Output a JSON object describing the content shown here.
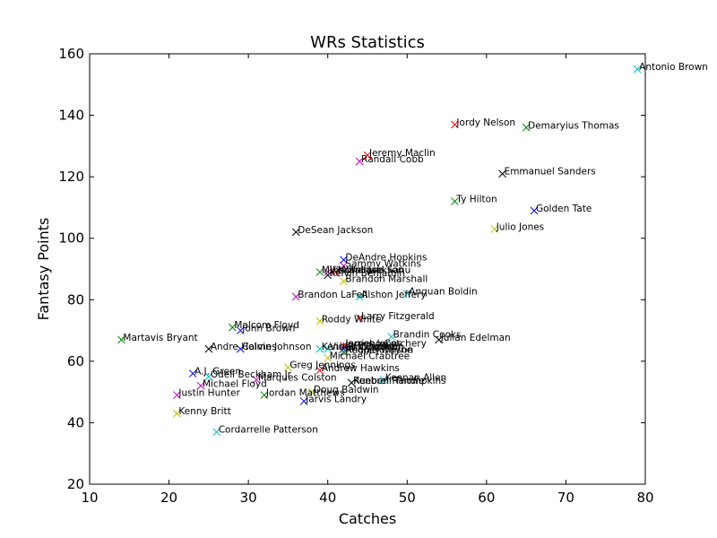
{
  "chart_data": {
    "type": "scatter",
    "title": "WRs Statistics",
    "xlabel": "Catches",
    "ylabel": "Fantasy Points",
    "xlim": [
      10,
      80
    ],
    "ylim": [
      20,
      160
    ],
    "xticks": [
      10,
      20,
      30,
      40,
      50,
      60,
      70,
      80
    ],
    "yticks": [
      20,
      40,
      60,
      80,
      100,
      120,
      140,
      160
    ],
    "grid": false,
    "marker": "x",
    "palette": [
      "#00bfbf",
      "#ff0000",
      "#008000",
      "#000000",
      "#0000ff",
      "#bfbf00",
      "#bf00bf"
    ],
    "points": [
      {
        "label": "Antonio Brown",
        "x": 79,
        "y": 155,
        "color": 0
      },
      {
        "label": "Jordy Nelson",
        "x": 56,
        "y": 137,
        "color": 1
      },
      {
        "label": "Demaryius Thomas",
        "x": 65,
        "y": 136,
        "color": 2
      },
      {
        "label": "Jeremy Maclin",
        "x": 45,
        "y": 127,
        "color": 1
      },
      {
        "label": "Randall Cobb",
        "x": 44,
        "y": 125,
        "color": 6
      },
      {
        "label": "Emmanuel Sanders",
        "x": 62,
        "y": 121,
        "color": 3
      },
      {
        "label": "Ty Hilton",
        "x": 56,
        "y": 112,
        "color": 2
      },
      {
        "label": "Golden Tate",
        "x": 66,
        "y": 109,
        "color": 4
      },
      {
        "label": "Julio Jones",
        "x": 61,
        "y": 103,
        "color": 5
      },
      {
        "label": "DeSean Jackson",
        "x": 36,
        "y": 102,
        "color": 3
      },
      {
        "label": "DeAndre Hopkins",
        "x": 42,
        "y": 93,
        "color": 4
      },
      {
        "label": "Sammy Watkins",
        "x": 42,
        "y": 91,
        "color": 6
      },
      {
        "label": "Mohamed Sanu",
        "x": 41,
        "y": 89,
        "color": 1
      },
      {
        "label": "Mike Wallace",
        "x": 39,
        "y": 89,
        "color": 2
      },
      {
        "label": "Kelvin Benjamin",
        "x": 40,
        "y": 88,
        "color": 3
      },
      {
        "label": "Vincent Jackson",
        "x": 40,
        "y": 89,
        "color": 6
      },
      {
        "label": "Brandon Marshall",
        "x": 42,
        "y": 86,
        "color": 5
      },
      {
        "label": "Brandon LaFell",
        "x": 36,
        "y": 81,
        "color": 6
      },
      {
        "label": "Alshon Jeffery",
        "x": 44,
        "y": 81,
        "color": 0
      },
      {
        "label": "Anquan Boldin",
        "x": 50,
        "y": 82,
        "color": 0
      },
      {
        "label": "Larry Fitzgerald",
        "x": 44,
        "y": 74,
        "color": 1
      },
      {
        "label": "Roddy White",
        "x": 39,
        "y": 73,
        "color": 5
      },
      {
        "label": "Malcom Floyd",
        "x": 28,
        "y": 71,
        "color": 2
      },
      {
        "label": "John Brown",
        "x": 29,
        "y": 70,
        "color": 4
      },
      {
        "label": "Brandin Cooks",
        "x": 48,
        "y": 68,
        "color": 0
      },
      {
        "label": "Julian Edelman",
        "x": 54,
        "y": 67,
        "color": 3
      },
      {
        "label": "Martavis Bryant",
        "x": 14,
        "y": 67,
        "color": 2
      },
      {
        "label": "Andre Holmes",
        "x": 25,
        "y": 64,
        "color": 3
      },
      {
        "label": "Calvin Johnson",
        "x": 29,
        "y": 64,
        "color": 4
      },
      {
        "label": "Kendall Wright",
        "x": 39,
        "y": 64,
        "color": 0
      },
      {
        "label": "Jerricho Cotchery",
        "x": 42,
        "y": 65,
        "color": 3
      },
      {
        "label": "James Jones",
        "x": 42,
        "y": 65,
        "color": 1
      },
      {
        "label": "Vincent Jackson",
        "x": 40,
        "y": 64,
        "color": 0
      },
      {
        "label": "Eric Decker",
        "x": 42,
        "y": 64,
        "color": 4
      },
      {
        "label": "Reggie Wayne",
        "x": 42,
        "y": 63,
        "color": 6
      },
      {
        "label": "Andre Johnson",
        "x": 42,
        "y": 63,
        "color": 2
      },
      {
        "label": "Michael Crabtree",
        "x": 40,
        "y": 61,
        "color": 5
      },
      {
        "label": "Greg Jennings",
        "x": 35,
        "y": 58,
        "color": 5
      },
      {
        "label": "Andrew Hawkins",
        "x": 39,
        "y": 57,
        "color": 1
      },
      {
        "label": "A.J. Green",
        "x": 23,
        "y": 56,
        "color": 4
      },
      {
        "label": "Odell Beckham Jr",
        "x": 25,
        "y": 55,
        "color": 0
      },
      {
        "label": "Marques Colston",
        "x": 31,
        "y": 54,
        "color": 6
      },
      {
        "label": "Kenbrell Thompkins",
        "x": 43,
        "y": 53,
        "color": 0
      },
      {
        "label": "Rueben Randle",
        "x": 43,
        "y": 53,
        "color": 3
      },
      {
        "label": "Keenan Allen",
        "x": 47,
        "y": 54,
        "color": 0
      },
      {
        "label": "Michael Floyd",
        "x": 24,
        "y": 52,
        "color": 6
      },
      {
        "label": "Doug Baldwin",
        "x": 38,
        "y": 50,
        "color": 5
      },
      {
        "label": "Jordan Matthews",
        "x": 32,
        "y": 49,
        "color": 2
      },
      {
        "label": "Jarvis Landry",
        "x": 37,
        "y": 47,
        "color": 4
      },
      {
        "label": "Justin Hunter",
        "x": 21,
        "y": 49,
        "color": 6
      },
      {
        "label": "Kenny Britt",
        "x": 21,
        "y": 43,
        "color": 5
      },
      {
        "label": "Cordarrelle Patterson",
        "x": 26,
        "y": 37,
        "color": 0
      }
    ]
  }
}
